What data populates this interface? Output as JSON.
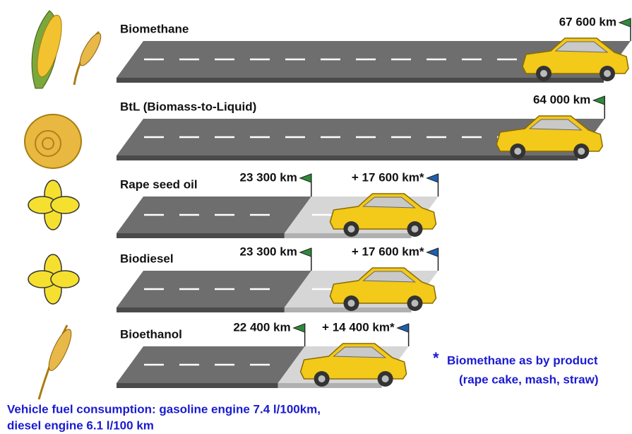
{
  "chart_data": {
    "type": "road",
    "categories": [
      "Biomethane",
      "BtL (Biomass-to-Liquid)",
      "Rape seed oil",
      "Biodiesel",
      "Bioethanol"
    ],
    "series": [
      {
        "color": "#6e6e6e",
        "flag_color": "#2e8b3a",
        "values": [
          67600,
          64000,
          23300,
          23300,
          22400
        ],
        "value_labels": [
          "67 600 km",
          "64 000 km",
          "23 300 km",
          "23 300 km",
          "22 400 km"
        ]
      },
      {
        "color": "#d6d6d6",
        "flag_color": "#1f5fb0",
        "values": [
          null,
          null,
          17600,
          17600,
          14400
        ],
        "value_labels": [
          null,
          null,
          "+ 17 600 km*",
          "+ 17 600 km*",
          "+ 14 400 km*"
        ]
      }
    ],
    "footnote": {
      "marker": "*",
      "lines": [
        "Biomethane as by product",
        "(rape cake, mash, straw)"
      ]
    },
    "note": [
      "Vehicle fuel consumption: gasoline engine 7.4 l/100km,",
      "diesel engine 6.1 l/100 km"
    ]
  }
}
